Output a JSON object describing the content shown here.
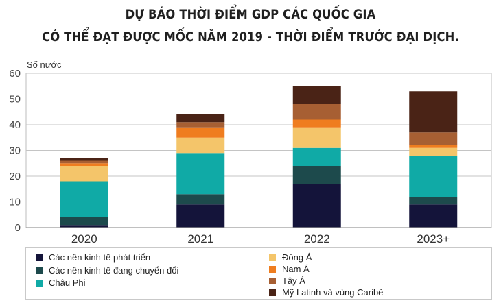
{
  "title_line1": "DỰ BÁO THỜI ĐIỂM GDP CÁC QUỐC GIA",
  "title_line2": "CÓ THỂ ĐẠT ĐƯỢC MỐC NĂM 2019 - THỜI ĐIỂM TRƯỚC ĐẠI DỊCH.",
  "chart_data": {
    "type": "bar",
    "stacked": true,
    "categories": [
      "2020",
      "2021",
      "2022",
      "2023+"
    ],
    "ylabel": "Số nước",
    "ylim": [
      0,
      60
    ],
    "yticks": [
      0,
      10,
      20,
      30,
      40,
      50,
      60
    ],
    "grid": true,
    "legend_position": "bottom",
    "series": [
      {
        "name": "Các nền kinh tế phát triển",
        "color": "#14143a",
        "values": [
          1,
          9,
          17,
          9
        ]
      },
      {
        "name": "Các nền kinh tế đang chuyển đổi",
        "color": "#1d4a4c",
        "values": [
          3,
          4,
          7,
          3
        ]
      },
      {
        "name": "Châu Phi",
        "color": "#10aaa6",
        "values": [
          14,
          16,
          7,
          16
        ]
      },
      {
        "name": "Đông Á",
        "color": "#f4c56a",
        "values": [
          6,
          6,
          8,
          3
        ]
      },
      {
        "name": "Nam Á",
        "color": "#ef7d1f",
        "values": [
          1,
          4,
          3,
          1
        ]
      },
      {
        "name": "Tây Á",
        "color": "#a75f33",
        "values": [
          1,
          2,
          6,
          5
        ]
      },
      {
        "name": "Mỹ Latinh và vùng Caribê",
        "color": "#4a2316",
        "values": [
          1,
          3,
          7,
          16
        ]
      }
    ]
  },
  "legend_items": [
    {
      "label": "Các nền kinh tế phát triển",
      "color": "#14143a"
    },
    {
      "label": "Các nền kinh tế đang chuyển đổi",
      "color": "#1d4a4c"
    },
    {
      "label": "Châu Phi",
      "color": "#10aaa6"
    },
    {
      "label": "Đông Á",
      "color": "#f4c56a"
    },
    {
      "label": "Nam Á",
      "color": "#ef7d1f"
    },
    {
      "label": "Tây Á",
      "color": "#a75f33"
    },
    {
      "label": "Mỹ Latinh và vùng Caribê",
      "color": "#4a2316"
    }
  ]
}
